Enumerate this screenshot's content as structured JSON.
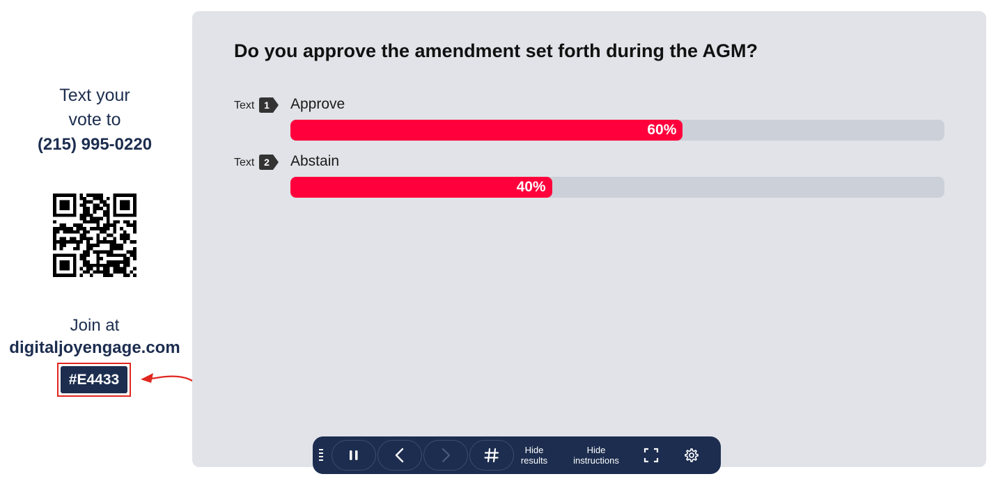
{
  "sidebar": {
    "instruction_line1": "Text your",
    "instruction_line2": "vote to",
    "phone": "(215) 995-0220",
    "join_text": "Join at",
    "join_url": "digitaljoyengage.com",
    "event_code": "#E4433"
  },
  "poll": {
    "question": "Do you approve the amendment set forth during the AGM?",
    "options": [
      {
        "prefix": "Text",
        "key": "1",
        "label": "Approve",
        "percent": 60,
        "percent_label": "60%"
      },
      {
        "prefix": "Text",
        "key": "2",
        "label": "Abstain",
        "percent": 40,
        "percent_label": "40%"
      }
    ],
    "bar_color": "#ff003c",
    "track_color": "#ccd0d8"
  },
  "toolbar": {
    "pause_icon": "pause-icon",
    "prev_icon": "chevron-left-icon",
    "next_icon": "chevron-right-icon",
    "hash_icon": "hash-icon",
    "hide_results_line1": "Hide",
    "hide_results_line2": "results",
    "hide_instructions_line1": "Hide",
    "hide_instructions_line2": "instructions",
    "fullscreen_icon": "fullscreen-icon",
    "settings_icon": "gear-icon"
  },
  "colors": {
    "navy": "#1c2d4f",
    "panel_bg": "#e1e3e8",
    "highlight_box": "#e0261f"
  }
}
